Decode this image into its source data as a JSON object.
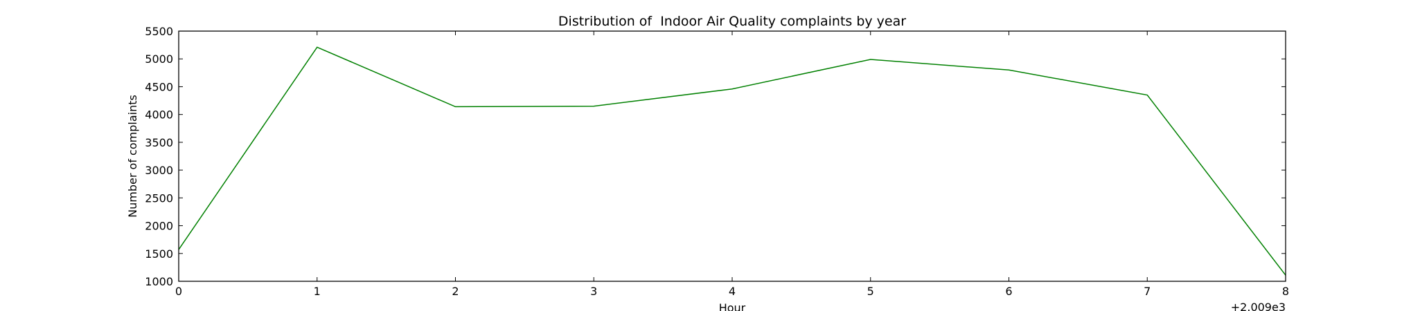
{
  "chart_data": {
    "type": "line",
    "title": "Distribution of  Indoor Air Quality complaints by year",
    "xlabel": "Hour",
    "ylabel": "Number of complaints",
    "x_offset_label": "+2.009e3",
    "x": [
      0,
      1,
      2,
      3,
      4,
      5,
      6,
      7,
      8
    ],
    "xlim": [
      0,
      8
    ],
    "ylim": [
      1000,
      5500
    ],
    "x_ticks": [
      0,
      1,
      2,
      3,
      4,
      5,
      6,
      7,
      8
    ],
    "y_ticks": [
      1000,
      1500,
      2000,
      2500,
      3000,
      3500,
      4000,
      4500,
      5000,
      5500
    ],
    "grid": false,
    "series": [
      {
        "color": "#008000",
        "values": [
          1570,
          5210,
          4140,
          4150,
          4460,
          4990,
          4800,
          4350,
          1110
        ]
      }
    ]
  }
}
